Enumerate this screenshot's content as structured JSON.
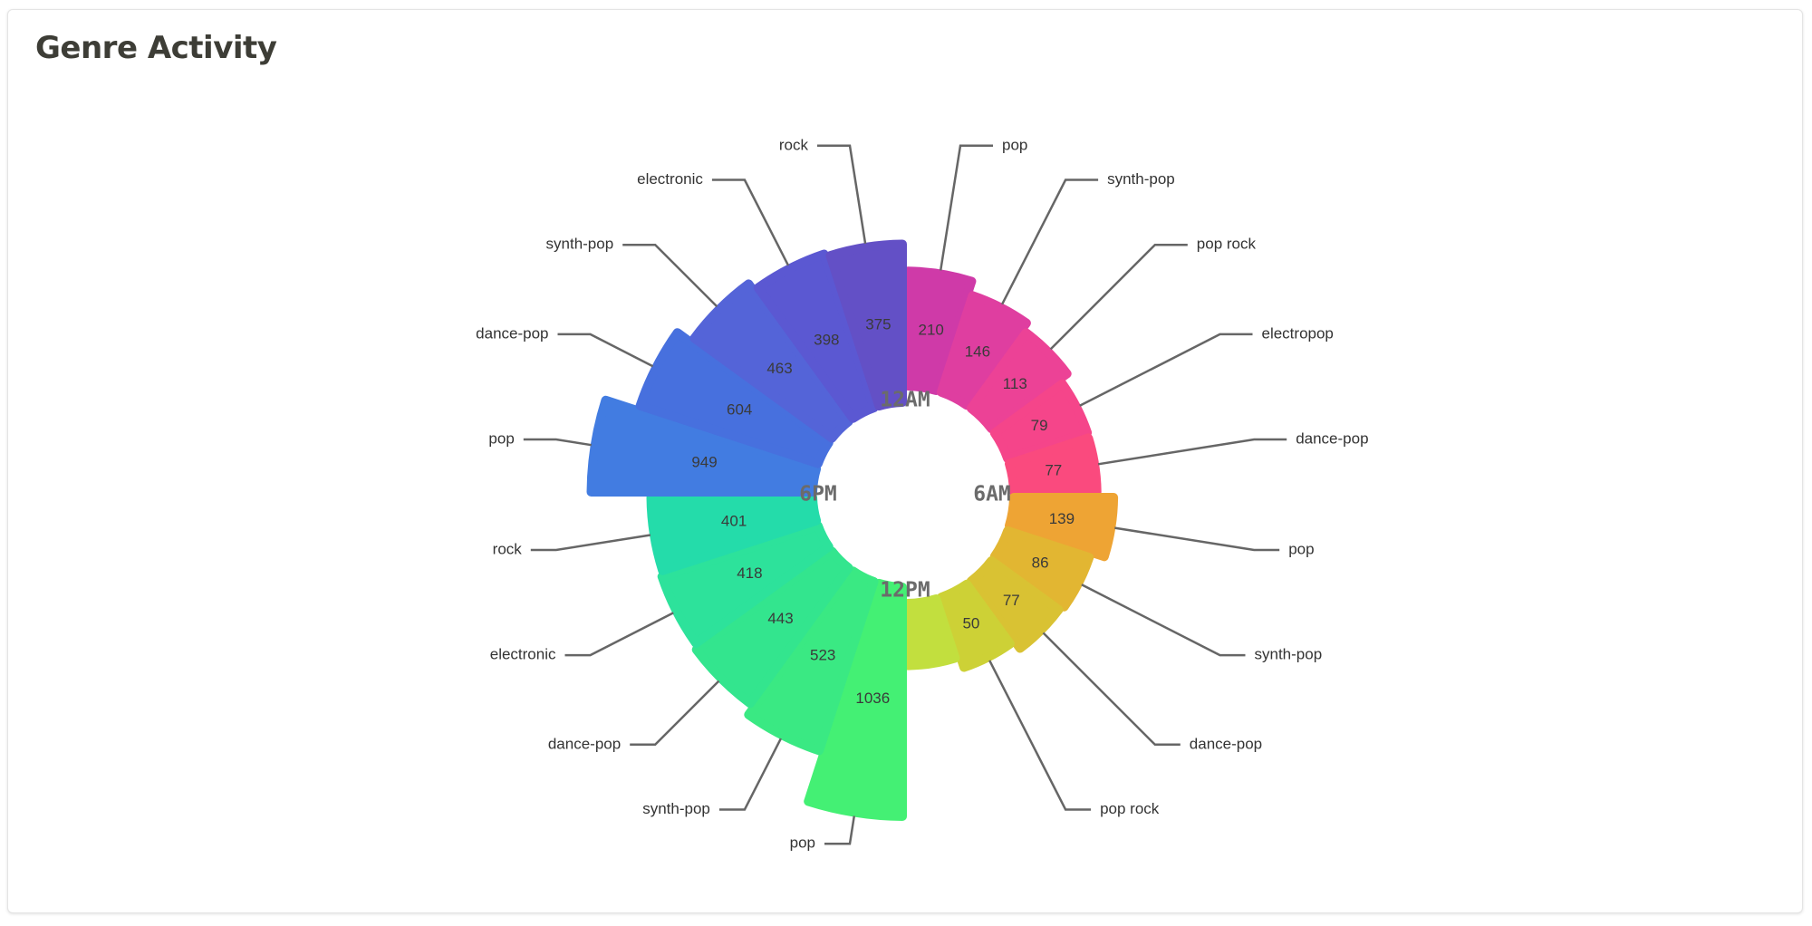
{
  "page": {
    "title": "Genre Activity"
  },
  "chart_data": {
    "type": "polar-bar",
    "title": "Genre Activity",
    "center_labels": [
      "12AM",
      "6AM",
      "12PM",
      "6PM"
    ],
    "segments": [
      {
        "label": "pop",
        "value": 210,
        "color": "#cf3aa8"
      },
      {
        "label": "synth-pop",
        "value": 146,
        "color": "#df3ea0"
      },
      {
        "label": "pop rock",
        "value": 113,
        "color": "#ec4296"
      },
      {
        "label": "electropop",
        "value": 79,
        "color": "#f5458a"
      },
      {
        "label": "dance-pop",
        "value": 77,
        "color": "#fa4a7e"
      },
      {
        "label": "pop",
        "value": 139,
        "color": "#eea434"
      },
      {
        "label": "synth-pop",
        "value": 86,
        "color": "#e2b632"
      },
      {
        "label": "dance-pop",
        "value": 77,
        "color": "#d9c233"
      },
      {
        "label": "pop rock",
        "value": 50,
        "color": "#cdd136"
      },
      {
        "label": "",
        "value": 25,
        "color": "#c2df3e"
      },
      {
        "label": "pop",
        "value": 1036,
        "color": "#44f074"
      },
      {
        "label": "synth-pop",
        "value": 523,
        "color": "#3ae983"
      },
      {
        "label": "dance-pop",
        "value": 443,
        "color": "#33e58e"
      },
      {
        "label": "electronic",
        "value": 418,
        "color": "#2de29b"
      },
      {
        "label": "rock",
        "value": 401,
        "color": "#24dcaa"
      },
      {
        "label": "pop",
        "value": 949,
        "color": "#427ce1"
      },
      {
        "label": "dance-pop",
        "value": 604,
        "color": "#4770de"
      },
      {
        "label": "synth-pop",
        "value": 463,
        "color": "#5464d8"
      },
      {
        "label": "electronic",
        "value": 398,
        "color": "#5b58d2"
      },
      {
        "label": "rock",
        "value": 375,
        "color": "#6350c6"
      }
    ]
  }
}
